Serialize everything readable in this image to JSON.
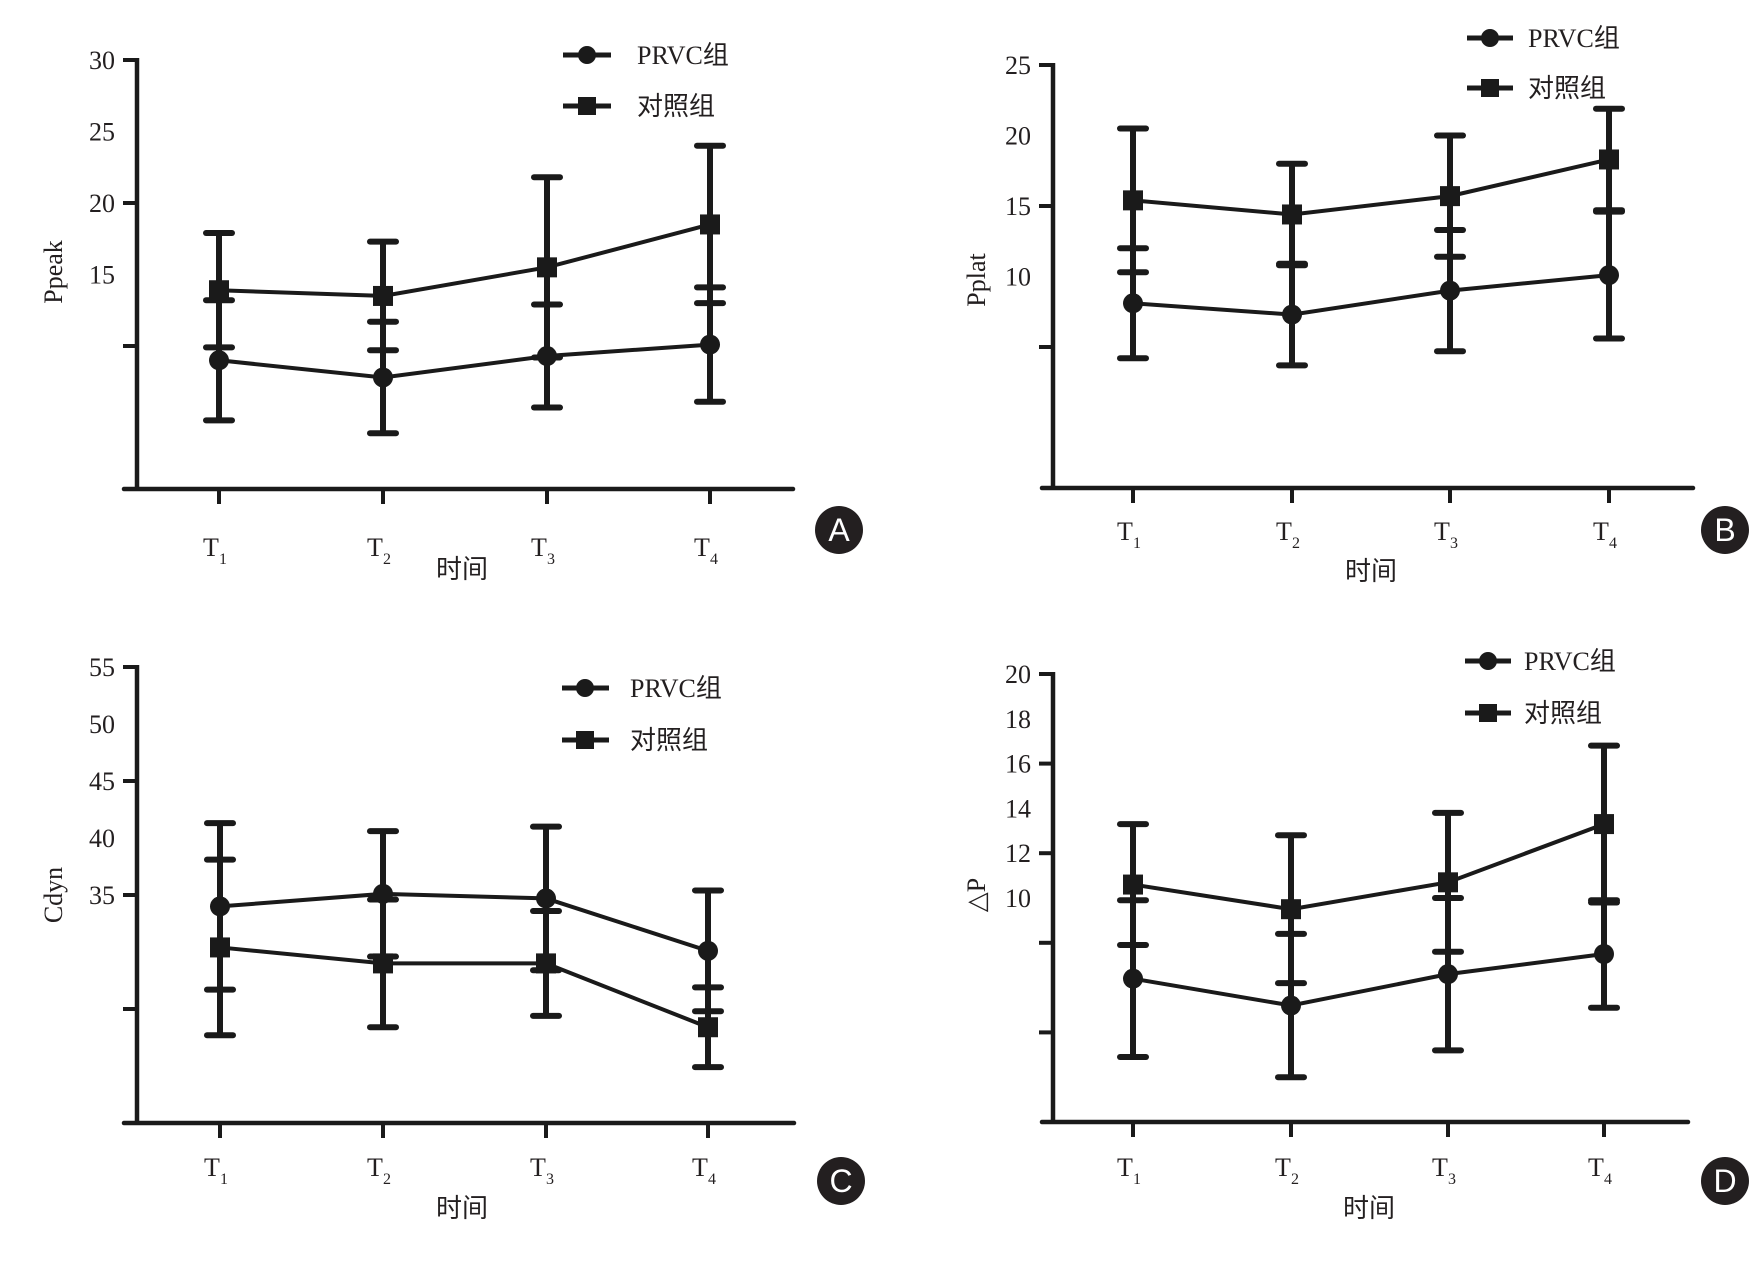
{
  "figure": {
    "colors": {
      "ink": "#1a1a1a",
      "badge_bg": "#231f20",
      "badge_text": "#ffffff",
      "background": "#ffffff"
    }
  },
  "chart_data": [
    {
      "panel": "A",
      "type": "line",
      "title": "",
      "xlabel": "时间",
      "ylabel": "Ppeak",
      "categories": [
        {
          "base": "T",
          "sub": "1"
        },
        {
          "base": "T",
          "sub": "2"
        },
        {
          "base": "T",
          "sub": "3"
        },
        {
          "base": "T",
          "sub": "4"
        }
      ],
      "ylim": [
        0,
        30
      ],
      "ytick_labels": [
        "15",
        "20",
        "25",
        "30"
      ],
      "ytick_label_values": [
        15,
        20,
        25,
        30
      ],
      "ytick_marks": [
        10,
        20,
        30
      ],
      "grid": false,
      "legend_position": "top-right",
      "series": [
        {
          "name": "PRVC组",
          "marker": "circle",
          "values": [
            9.0,
            7.8,
            9.3,
            10.1
          ],
          "error": [
            4.2,
            3.9,
            3.6,
            4.0
          ]
        },
        {
          "name": "对照组",
          "marker": "square",
          "values": [
            13.9,
            13.5,
            15.5,
            18.5
          ],
          "error": [
            4.0,
            3.8,
            6.3,
            5.5
          ]
        }
      ]
    },
    {
      "panel": "B",
      "type": "line",
      "title": "",
      "xlabel": "时间",
      "ylabel": "Pplat",
      "categories": [
        {
          "base": "T",
          "sub": "1"
        },
        {
          "base": "T",
          "sub": "2"
        },
        {
          "base": "T",
          "sub": "3"
        },
        {
          "base": "T",
          "sub": "4"
        }
      ],
      "ylim": [
        -5,
        25
      ],
      "ytick_labels": [
        "10",
        "15",
        "20",
        "25"
      ],
      "ytick_label_values": [
        10,
        15,
        20,
        25
      ],
      "ytick_marks": [
        5,
        15,
        25
      ],
      "grid": false,
      "legend_position": "top-right",
      "series": [
        {
          "name": "PRVC组",
          "marker": "circle",
          "values": [
            8.1,
            7.3,
            9.0,
            10.1
          ],
          "error": [
            3.9,
            3.6,
            4.3,
            4.5
          ]
        },
        {
          "name": "对照组",
          "marker": "square",
          "values": [
            15.4,
            14.4,
            15.7,
            18.3
          ],
          "error": [
            5.1,
            3.6,
            4.3,
            3.6
          ]
        }
      ]
    },
    {
      "panel": "C",
      "type": "line",
      "title": "",
      "xlabel": "时间",
      "ylabel": "Cdyn",
      "categories": [
        {
          "base": "T",
          "sub": "1"
        },
        {
          "base": "T",
          "sub": "2"
        },
        {
          "base": "T",
          "sub": "3"
        },
        {
          "base": "T",
          "sub": "4"
        }
      ],
      "ylim": [
        15,
        55
      ],
      "ytick_labels": [
        "35",
        "40",
        "45",
        "50",
        "55"
      ],
      "ytick_label_values": [
        35,
        40,
        45,
        50,
        55
      ],
      "ytick_marks": [
        25,
        35,
        45,
        55
      ],
      "grid": false,
      "legend_position": "top-right",
      "series": [
        {
          "name": "PRVC组",
          "marker": "circle",
          "values": [
            34.0,
            35.1,
            34.7,
            30.1
          ],
          "error": [
            7.3,
            5.5,
            6.3,
            5.3
          ]
        },
        {
          "name": "对照组",
          "marker": "square",
          "values": [
            30.4,
            29.0,
            29.0,
            23.4
          ],
          "error": [
            7.7,
            5.6,
            4.6,
            3.5
          ]
        }
      ]
    },
    {
      "panel": "D",
      "type": "line",
      "title": "",
      "xlabel": "时间",
      "ylabel": "△P",
      "categories": [
        {
          "base": "T",
          "sub": "1"
        },
        {
          "base": "T",
          "sub": "2"
        },
        {
          "base": "T",
          "sub": "3"
        },
        {
          "base": "T",
          "sub": "4"
        }
      ],
      "ylim": [
        0,
        20
      ],
      "ytick_labels": [
        "10",
        "12",
        "14",
        "16",
        "18",
        "20"
      ],
      "ytick_label_values": [
        10,
        12,
        14,
        16,
        18,
        20
      ],
      "ytick_marks": [
        4,
        8,
        12,
        16,
        20
      ],
      "grid": false,
      "legend_position": "top-right",
      "series": [
        {
          "name": "PRVC组",
          "marker": "circle",
          "values": [
            6.4,
            5.2,
            6.6,
            7.5
          ],
          "error": [
            3.5,
            3.2,
            3.4,
            2.4
          ]
        },
        {
          "name": "对照组",
          "marker": "square",
          "values": [
            10.6,
            9.5,
            10.7,
            13.3
          ],
          "error": [
            2.7,
            3.3,
            3.1,
            3.5
          ]
        }
      ]
    }
  ]
}
